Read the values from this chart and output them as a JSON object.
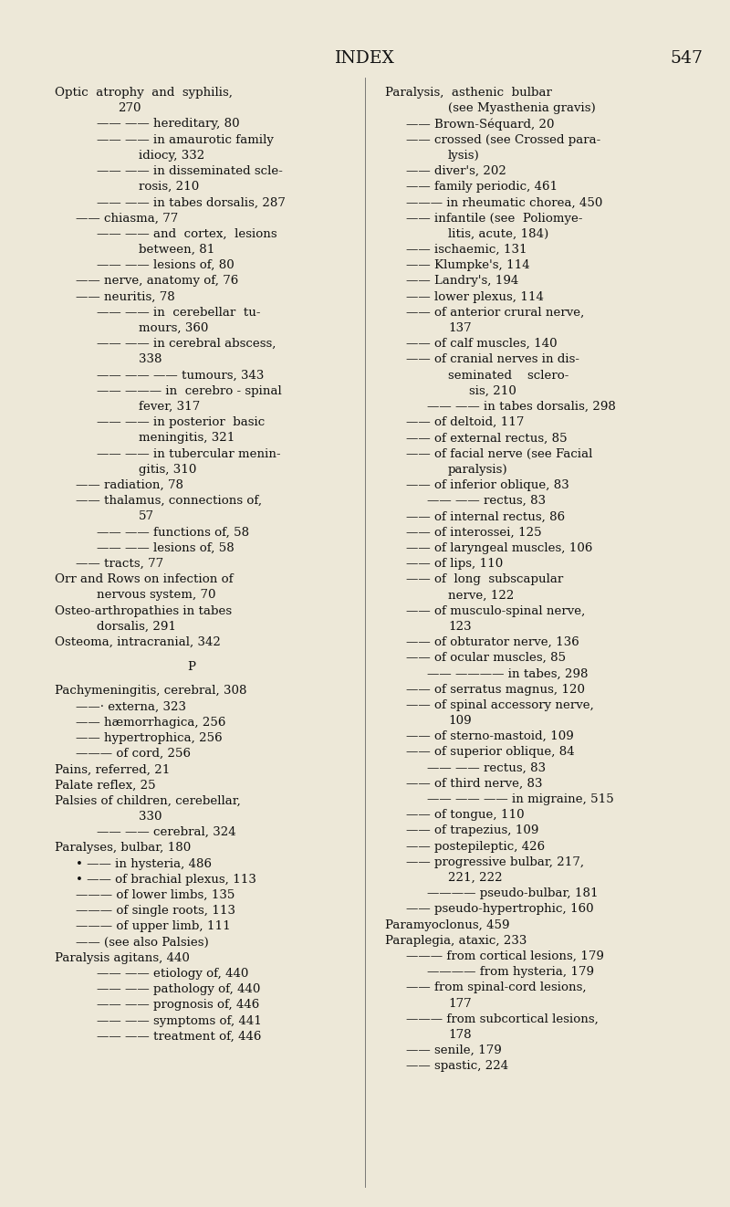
{
  "bg_color": "#ede8d8",
  "text_color": "#111111",
  "title": "INDEX",
  "page_num": "547",
  "title_fontsize": 13.5,
  "body_fontsize": 9.6,
  "figsize": [
    8.0,
    13.22
  ],
  "dpi": 100,
  "left_col": [
    {
      "t": "Optic  atrophy  and  syphilis,",
      "i": 0,
      "c": false
    },
    {
      "t": "270",
      "i": 3,
      "c": false
    },
    {
      "t": "—— —— hereditary, 80",
      "i": 2,
      "c": false
    },
    {
      "t": "—— —— in amaurotic family",
      "i": 2,
      "c": false
    },
    {
      "t": "idiocy, 332",
      "i": 4,
      "c": false
    },
    {
      "t": "—— —— in disseminated scle-",
      "i": 2,
      "c": false
    },
    {
      "t": "rosis, 210",
      "i": 4,
      "c": false
    },
    {
      "t": "—— —— in tabes dorsalis, 287",
      "i": 2,
      "c": false
    },
    {
      "t": "—— chiasma, 77",
      "i": 1,
      "c": false
    },
    {
      "t": "—— —— and  cortex,  lesions",
      "i": 2,
      "c": false
    },
    {
      "t": "between, 81",
      "i": 4,
      "c": false
    },
    {
      "t": "—— —— lesions of, 80",
      "i": 2,
      "c": false
    },
    {
      "t": "—— nerve, anatomy of, 76",
      "i": 1,
      "c": false
    },
    {
      "t": "—— neuritis, 78",
      "i": 1,
      "c": false
    },
    {
      "t": "—— —— in  cerebellar  tu-",
      "i": 2,
      "c": false
    },
    {
      "t": "mours, 360",
      "i": 4,
      "c": false
    },
    {
      "t": "—— —— in cerebral abscess,",
      "i": 2,
      "c": false
    },
    {
      "t": "338",
      "i": 4,
      "c": false
    },
    {
      "t": "—— —— —— tumours, 343",
      "i": 2,
      "c": false
    },
    {
      "t": "—— ——— in  cerebro - spinal",
      "i": 2,
      "c": false
    },
    {
      "t": "fever, 317",
      "i": 4,
      "c": false
    },
    {
      "t": "—— —— in posterior  basic",
      "i": 2,
      "c": false
    },
    {
      "t": "meningitis, 321",
      "i": 4,
      "c": false
    },
    {
      "t": "—— —— in tubercular menin-",
      "i": 2,
      "c": false
    },
    {
      "t": "gitis, 310",
      "i": 4,
      "c": false
    },
    {
      "t": "—— radiation, 78",
      "i": 1,
      "c": false
    },
    {
      "t": "—— thalamus, connections of,",
      "i": 1,
      "c": false
    },
    {
      "t": "57",
      "i": 4,
      "c": false
    },
    {
      "t": "—— —— functions of, 58",
      "i": 2,
      "c": false
    },
    {
      "t": "—— —— lesions of, 58",
      "i": 2,
      "c": false
    },
    {
      "t": "—— tracts, 77",
      "i": 1,
      "c": false
    },
    {
      "t": "Orr and Rows on infection of",
      "i": 0,
      "c": false
    },
    {
      "t": "nervous system, 70",
      "i": 2,
      "c": false
    },
    {
      "t": "Osteo-arthropathies in tabes",
      "i": 0,
      "c": false
    },
    {
      "t": "dorsalis, 291",
      "i": 2,
      "c": false
    },
    {
      "t": "Osteoma, intracranial, 342",
      "i": 0,
      "c": false
    },
    {
      "t": "",
      "i": 0,
      "c": false
    },
    {
      "t": "P",
      "i": 0,
      "c": true
    },
    {
      "t": "",
      "i": 0,
      "c": false
    },
    {
      "t": "Pachymeningitis, cerebral, 308",
      "i": 0,
      "c": false
    },
    {
      "t": "——· externa, 323",
      "i": 1,
      "c": false
    },
    {
      "t": "—— hæmorrhagica, 256",
      "i": 1,
      "c": false
    },
    {
      "t": "—— hypertrophica, 256",
      "i": 1,
      "c": false
    },
    {
      "t": "——— of cord, 256",
      "i": 1,
      "c": false
    },
    {
      "t": "Pains, referred, 21",
      "i": 0,
      "c": false
    },
    {
      "t": "Palate reflex, 25",
      "i": 0,
      "c": false
    },
    {
      "t": "Palsies of children, cerebellar,",
      "i": 0,
      "c": false
    },
    {
      "t": "330",
      "i": 4,
      "c": false
    },
    {
      "t": "—— —— cerebral, 324",
      "i": 2,
      "c": false
    },
    {
      "t": "Paralyses, bulbar, 180",
      "i": 0,
      "c": false
    },
    {
      "t": "• —— in hysteria, 486",
      "i": 1,
      "c": false
    },
    {
      "t": "• —— of brachial plexus, 113",
      "i": 1,
      "c": false
    },
    {
      "t": "——— of lower limbs, 135",
      "i": 1,
      "c": false
    },
    {
      "t": "——— of single roots, 113",
      "i": 1,
      "c": false
    },
    {
      "t": "——— of upper limb, 111",
      "i": 1,
      "c": false
    },
    {
      "t": "—— (see also Palsies)",
      "i": 1,
      "c": false
    },
    {
      "t": "Paralysis agitans, 440",
      "i": 0,
      "c": false
    },
    {
      "t": "—— —— etiology of, 440",
      "i": 2,
      "c": false
    },
    {
      "t": "—— —— pathology of, 440",
      "i": 2,
      "c": false
    },
    {
      "t": "—— —— prognosis of, 446",
      "i": 2,
      "c": false
    },
    {
      "t": "—— —— symptoms of, 441",
      "i": 2,
      "c": false
    },
    {
      "t": "—— —— treatment of, 446",
      "i": 2,
      "c": false
    }
  ],
  "right_col": [
    {
      "t": "Paralysis,  asthenic  bulbar",
      "i": 0,
      "c": false
    },
    {
      "t": "(see Myasthenia gravis)",
      "i": 3,
      "c": false
    },
    {
      "t": "—— Brown-Séquard, 20",
      "i": 1,
      "c": false
    },
    {
      "t": "—— crossed (see Crossed para-",
      "i": 1,
      "c": false
    },
    {
      "t": "lysis)",
      "i": 3,
      "c": false
    },
    {
      "t": "—— diver's, 202",
      "i": 1,
      "c": false
    },
    {
      "t": "—— family periodic, 461",
      "i": 1,
      "c": false
    },
    {
      "t": "——— in rheumatic chorea, 450",
      "i": 1,
      "c": false
    },
    {
      "t": "—— infantile (see  Poliomye-",
      "i": 1,
      "c": false
    },
    {
      "t": "litis, acute, 184)",
      "i": 3,
      "c": false
    },
    {
      "t": "—— ischaemic, 131",
      "i": 1,
      "c": false
    },
    {
      "t": "—— Klumpke's, 114",
      "i": 1,
      "c": false
    },
    {
      "t": "—— Landry's, 194",
      "i": 1,
      "c": false
    },
    {
      "t": "—— lower plexus, 114",
      "i": 1,
      "c": false
    },
    {
      "t": "—— of anterior crural nerve,",
      "i": 1,
      "c": false
    },
    {
      "t": "137",
      "i": 3,
      "c": false
    },
    {
      "t": "—— of calf muscles, 140",
      "i": 1,
      "c": false
    },
    {
      "t": "—— of cranial nerves in dis-",
      "i": 1,
      "c": false
    },
    {
      "t": "seminated    sclero-",
      "i": 3,
      "c": false
    },
    {
      "t": "sis, 210",
      "i": 4,
      "c": false
    },
    {
      "t": "—— —— in tabes dorsalis, 298",
      "i": 2,
      "c": false
    },
    {
      "t": "—— of deltoid, 117",
      "i": 1,
      "c": false
    },
    {
      "t": "—— of external rectus, 85",
      "i": 1,
      "c": false
    },
    {
      "t": "—— of facial nerve (see Facial",
      "i": 1,
      "c": false
    },
    {
      "t": "paralysis)",
      "i": 3,
      "c": false
    },
    {
      "t": "—— of inferior oblique, 83",
      "i": 1,
      "c": false
    },
    {
      "t": "—— —— rectus, 83",
      "i": 2,
      "c": false
    },
    {
      "t": "—— of internal rectus, 86",
      "i": 1,
      "c": false
    },
    {
      "t": "—— of interossei, 125",
      "i": 1,
      "c": false
    },
    {
      "t": "—— of laryngeal muscles, 106",
      "i": 1,
      "c": false
    },
    {
      "t": "—— of lips, 110",
      "i": 1,
      "c": false
    },
    {
      "t": "—— of  long  subscapular",
      "i": 1,
      "c": false
    },
    {
      "t": "nerve, 122",
      "i": 3,
      "c": false
    },
    {
      "t": "—— of musculo-spinal nerve,",
      "i": 1,
      "c": false
    },
    {
      "t": "123",
      "i": 3,
      "c": false
    },
    {
      "t": "—— of obturator nerve, 136",
      "i": 1,
      "c": false
    },
    {
      "t": "—— of ocular muscles, 85",
      "i": 1,
      "c": false
    },
    {
      "t": "—— ———— in tabes, 298",
      "i": 2,
      "c": false
    },
    {
      "t": "—— of serratus magnus, 120",
      "i": 1,
      "c": false
    },
    {
      "t": "—— of spinal accessory nerve,",
      "i": 1,
      "c": false
    },
    {
      "t": "109",
      "i": 3,
      "c": false
    },
    {
      "t": "—— of sterno-mastoid, 109",
      "i": 1,
      "c": false
    },
    {
      "t": "—— of superior oblique, 84",
      "i": 1,
      "c": false
    },
    {
      "t": "—— —— rectus, 83",
      "i": 2,
      "c": false
    },
    {
      "t": "—— of third nerve, 83",
      "i": 1,
      "c": false
    },
    {
      "t": "—— —— —— in migraine, 515",
      "i": 2,
      "c": false
    },
    {
      "t": "—— of tongue, 110",
      "i": 1,
      "c": false
    },
    {
      "t": "—— of trapezius, 109",
      "i": 1,
      "c": false
    },
    {
      "t": "—— postepileptic, 426",
      "i": 1,
      "c": false
    },
    {
      "t": "—— progressive bulbar, 217,",
      "i": 1,
      "c": false
    },
    {
      "t": "221, 222",
      "i": 3,
      "c": false
    },
    {
      "t": "———— pseudo-bulbar, 181",
      "i": 2,
      "c": false
    },
    {
      "t": "—— pseudo-hypertrophic, 160",
      "i": 1,
      "c": false
    },
    {
      "t": "Paramyoclonus, 459",
      "i": 0,
      "c": false
    },
    {
      "t": "Paraplegia, ataxic, 233",
      "i": 0,
      "c": false
    },
    {
      "t": "——— from cortical lesions, 179",
      "i": 1,
      "c": false
    },
    {
      "t": "———— from hysteria, 179",
      "i": 2,
      "c": false
    },
    {
      "t": "—— from spinal-cord lesions,",
      "i": 1,
      "c": false
    },
    {
      "t": "177",
      "i": 3,
      "c": false
    },
    {
      "t": "——— from subcortical lesions,",
      "i": 1,
      "c": false
    },
    {
      "t": "178",
      "i": 3,
      "c": false
    },
    {
      "t": "—— senile, 179",
      "i": 1,
      "c": false
    },
    {
      "t": "—— spastic, 224",
      "i": 1,
      "c": false
    }
  ]
}
